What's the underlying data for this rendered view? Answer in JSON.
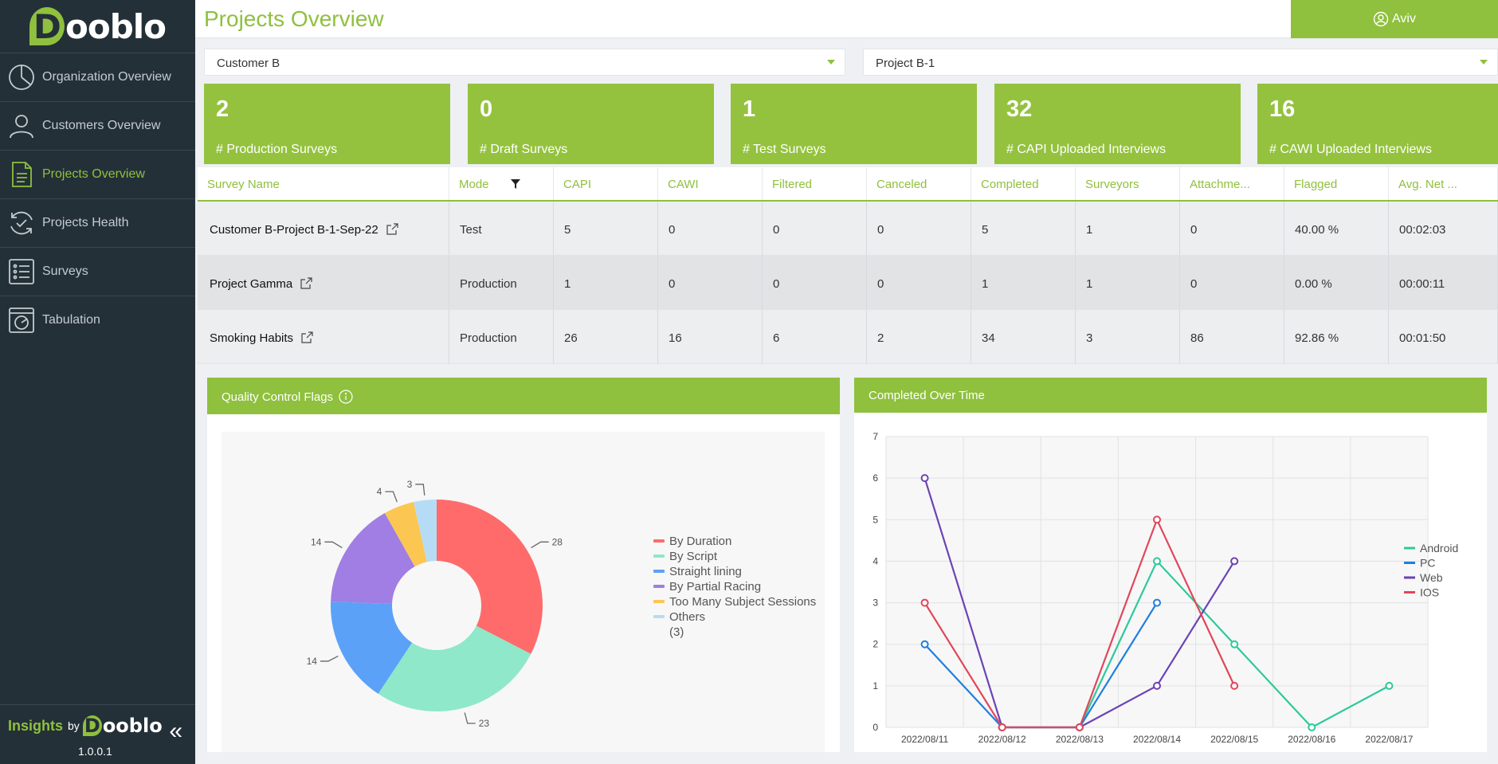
{
  "brand": {
    "logo_initial": "D",
    "logo_text": "ooblo"
  },
  "header": {
    "title": "Projects Overview",
    "user": "Aviv"
  },
  "sidebar": {
    "items": [
      {
        "label": "Organization Overview",
        "icon": "pie-chart-icon"
      },
      {
        "label": "Customers Overview",
        "icon": "user-icon"
      },
      {
        "label": "Projects Overview",
        "icon": "document-icon"
      },
      {
        "label": "Projects Health",
        "icon": "refresh-check-icon"
      },
      {
        "label": "Surveys",
        "icon": "list-icon"
      },
      {
        "label": "Tabulation",
        "icon": "gauge-icon"
      }
    ],
    "active_index": 2,
    "footer": {
      "insights": "Insights",
      "by": "by",
      "version": "1.0.0.1",
      "collapse": "«"
    }
  },
  "filters": {
    "customer": "Customer B",
    "project": "Project B-1"
  },
  "cards": [
    {
      "value": "2",
      "label": "# Production Surveys"
    },
    {
      "value": "0",
      "label": "# Draft Surveys"
    },
    {
      "value": "1",
      "label": "# Test Surveys"
    },
    {
      "value": "32",
      "label": "# CAPI Uploaded Interviews"
    },
    {
      "value": "16",
      "label": "# CAWI Uploaded Interviews"
    }
  ],
  "table": {
    "columns": [
      "Survey Name",
      "Mode",
      "CAPI",
      "CAWI",
      "Filtered",
      "Canceled",
      "Completed",
      "Surveyors",
      "Attachme...",
      "Flagged",
      "Avg. Net ..."
    ],
    "rows": [
      [
        "Customer B-Project B-1-Sep-22",
        "Test",
        "5",
        "0",
        "0",
        "0",
        "5",
        "1",
        "0",
        "40.00 %",
        "00:02:03"
      ],
      [
        "Project Gamma",
        "Production",
        "1",
        "0",
        "0",
        "0",
        "1",
        "1",
        "0",
        "0.00 %",
        "00:00:11"
      ],
      [
        "Smoking Habits",
        "Production",
        "26",
        "16",
        "6",
        "2",
        "34",
        "3",
        "86",
        "92.86 %",
        "00:01:50"
      ]
    ]
  },
  "qc_panel": {
    "title": "Quality Control Flags"
  },
  "time_panel": {
    "title": "Completed Over Time"
  },
  "colors": {
    "accent": "#8fc03e",
    "sidebar": "#243038"
  },
  "chart_data": [
    {
      "type": "pie",
      "title": "Quality Control Flags",
      "categories": [
        "By Duration",
        "By Script",
        "Straight lining",
        "By Partial Racing",
        "Too Many Subject Sessions",
        "Others"
      ],
      "values": [
        28,
        23,
        14,
        14,
        4,
        3
      ],
      "legend_labels": [
        "By Duration",
        "By Script",
        "Straight lining",
        "By Partial Racing",
        "Too Many Subject Sessions",
        "Others",
        "(3)"
      ],
      "colors": [
        "#ff6b6b",
        "#8ee8c9",
        "#5ba1f7",
        "#a07ee3",
        "#fcc653",
        "#b6dcf5"
      ],
      "legend": "right"
    },
    {
      "type": "line",
      "title": "Completed Over Time",
      "x": [
        "2022/08/11",
        "2022/08/12",
        "2022/08/13",
        "2022/08/14",
        "2022/08/15",
        "2022/08/16",
        "2022/08/17"
      ],
      "ylim": [
        0,
        7
      ],
      "yticks": [
        "0",
        "1",
        "2",
        "3",
        "4",
        "5",
        "6",
        "7"
      ],
      "series": [
        {
          "name": "Android",
          "color": "#2ec99b",
          "values": [
            null,
            0,
            0,
            4,
            2,
            0,
            1
          ]
        },
        {
          "name": "PC",
          "color": "#1f7fdf",
          "values": [
            2,
            0,
            0,
            3,
            null,
            null,
            null
          ]
        },
        {
          "name": "Web",
          "color": "#6b43b5",
          "values": [
            6,
            0,
            0,
            1,
            4,
            null,
            null
          ]
        },
        {
          "name": "IOS",
          "color": "#e0475a",
          "values": [
            3,
            0,
            0,
            5,
            1,
            null,
            null
          ]
        }
      ],
      "legend": "right"
    }
  ]
}
